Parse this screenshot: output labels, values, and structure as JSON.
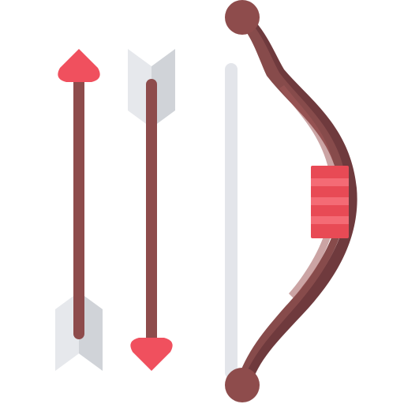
{
  "illustration": {
    "subject": "cupid-bow-and-arrows-icon",
    "elements": [
      "heart-tipped-arrow",
      "heart-tipped-arrow",
      "bow-with-string"
    ]
  },
  "colors": {
    "heart": "#F0505E",
    "shaft": "#8E4C4C",
    "bow_dark": "#6F3A3D",
    "bow_mid": "#874B4B",
    "bow_light": "#A05A5A",
    "feather_light": "#E6E8EC",
    "feather_shade": "#D0D3D8",
    "string": "#E3E5EA",
    "grip_red": "#E84A55",
    "grip_light": "#F46B75"
  }
}
